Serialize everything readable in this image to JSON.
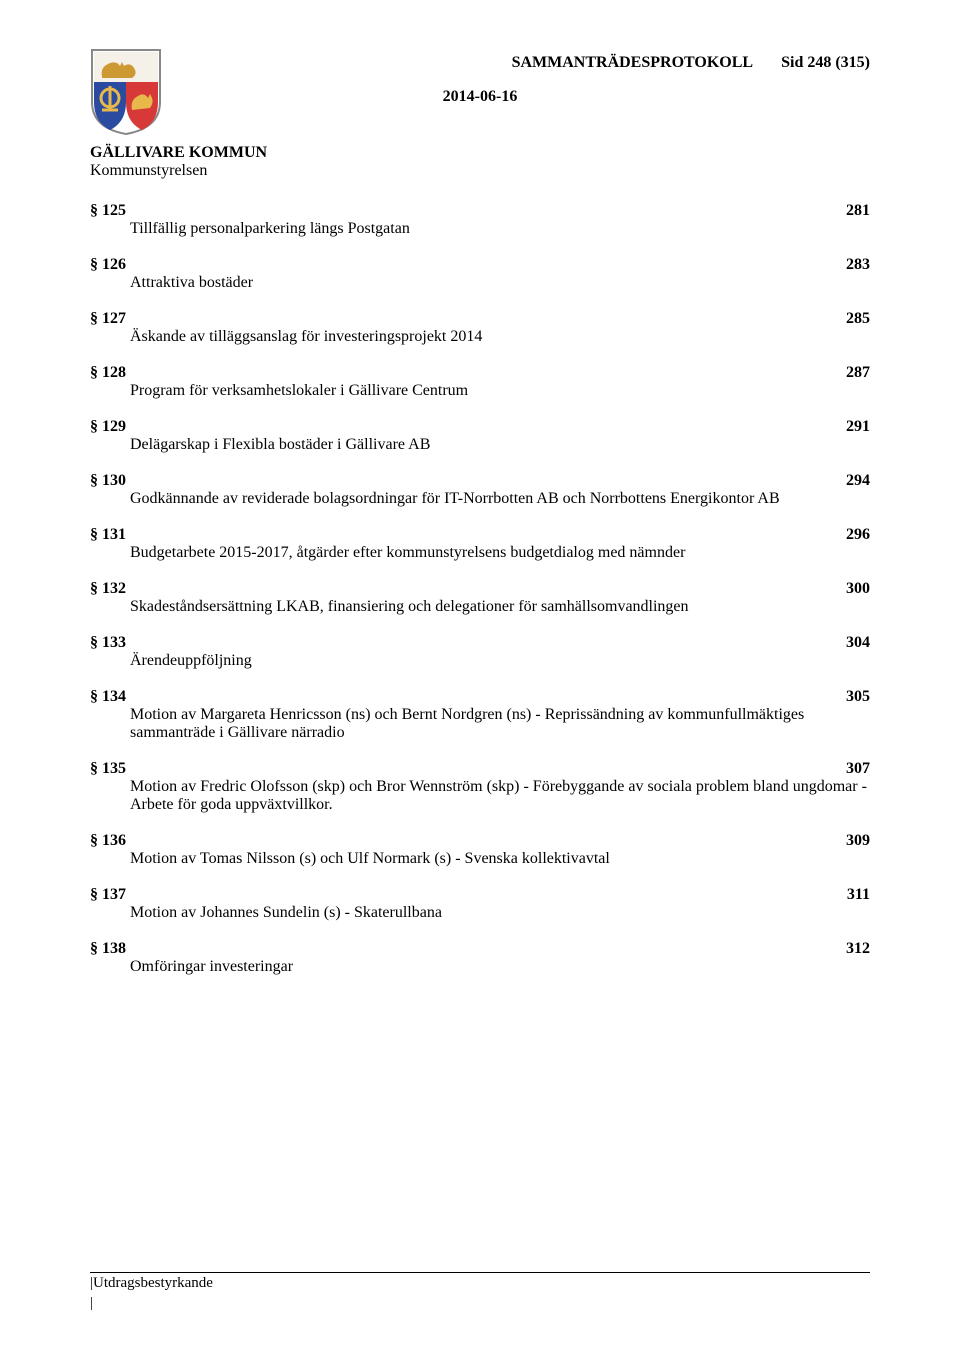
{
  "header": {
    "doc_title": "SAMMANTRÄDESPROTOKOLL",
    "page_indicator": "Sid 248 (315)",
    "date": "2014-06-16",
    "org": "GÄLLIVARE KOMMUN",
    "org_sub": "Kommunstyrelsen",
    "crest": {
      "shield_outline": "#888888",
      "top_bg": "#f5f0e8",
      "animal_color": "#cc9933",
      "bottom_left_bg": "#2a4ba0",
      "bottom_right_bg": "#d73838",
      "symbol_color": "#e8b84a"
    }
  },
  "toc": [
    {
      "section": "§ 125",
      "page": "281",
      "title": "Tillfällig personalparkering längs Postgatan"
    },
    {
      "section": "§ 126",
      "page": "283",
      "title": "Attraktiva bostäder"
    },
    {
      "section": "§ 127",
      "page": "285",
      "title": "Äskande av tilläggsanslag för investeringsprojekt 2014"
    },
    {
      "section": "§ 128",
      "page": "287",
      "title": "Program för verksamhetslokaler i Gällivare Centrum"
    },
    {
      "section": "§ 129",
      "page": "291",
      "title": "Delägarskap i Flexibla bostäder i Gällivare AB"
    },
    {
      "section": "§ 130",
      "page": "294",
      "title": "Godkännande av reviderade bolagsordningar för IT-Norrbotten AB och Norrbottens Energikontor AB"
    },
    {
      "section": "§ 131",
      "page": "296",
      "title": "Budgetarbete 2015-2017, åtgärder efter kommunstyrelsens budgetdialog med nämnder"
    },
    {
      "section": "§ 132",
      "page": "300",
      "title": "Skadeståndsersättning LKAB, finansiering och delegationer för samhällsomvandlingen"
    },
    {
      "section": "§ 133",
      "page": "304",
      "title": "Ärendeuppföljning"
    },
    {
      "section": "§ 134",
      "page": "305",
      "title": "Motion av Margareta Henricsson (ns) och Bernt Nordgren (ns) - Reprissändning av kommunfullmäktiges sammanträde i Gällivare närradio"
    },
    {
      "section": "§ 135",
      "page": "307",
      "title": "Motion av Fredric Olofsson (skp) och Bror Wennström (skp) - Förebyggande av sociala problem bland ungdomar - Arbete för goda uppväxtvillkor."
    },
    {
      "section": "§ 136",
      "page": "309",
      "title": "Motion av Tomas Nilsson (s) och Ulf Normark (s) - Svenska kollektivavtal"
    },
    {
      "section": "§ 137",
      "page": "311",
      "title": "Motion av Johannes Sundelin (s) - Skaterullbana"
    },
    {
      "section": "§ 138",
      "page": "312",
      "title": "Omföringar investeringar"
    }
  ],
  "footer": {
    "label": "|Utdragsbestyrkande",
    "pipe": "|"
  }
}
